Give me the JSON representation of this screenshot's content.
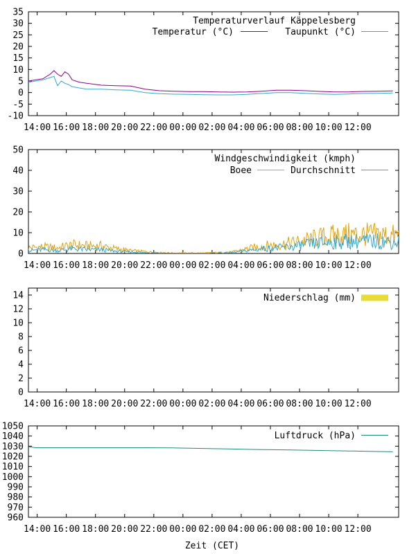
{
  "x_ticks": [
    "14:00",
    "16:00",
    "18:00",
    "20:00",
    "22:00",
    "00:00",
    "02:00",
    "04:00",
    "06:00",
    "08:00",
    "10:00",
    "12:00"
  ],
  "x_label": "Zeit (CET)",
  "colors": {
    "temperature": "#8b0086",
    "dewpoint": "#34a7cc",
    "gust": "#e6a00d",
    "average": "#34a7cc",
    "rain": "#e6dc35",
    "pressure": "#1e8a78"
  },
  "chart_data": [
    {
      "type": "line",
      "title": "Temperaturverlauf Käppelesberg",
      "ylim": [
        -10,
        35
      ],
      "yticks": [
        -10,
        -5,
        0,
        5,
        10,
        15,
        20,
        25,
        30,
        35
      ],
      "hours": [
        0,
        0.5,
        1,
        1.5,
        1.75,
        2,
        2.25,
        2.5,
        2.75,
        3,
        3.5,
        4,
        5,
        6,
        7,
        8,
        9,
        10,
        11,
        12,
        13,
        14,
        15,
        16,
        17,
        18,
        19,
        20,
        21,
        22,
        23,
        24,
        25
      ],
      "series": [
        {
          "name": "Temperatur (°C)",
          "values": [
            5,
            5.5,
            6,
            8,
            9.5,
            8,
            7,
            9,
            8,
            5.5,
            4.5,
            4,
            3.2,
            3,
            2.8,
            1.5,
            0.8,
            0.6,
            0.4,
            0.4,
            0.3,
            0.2,
            0.3,
            0.6,
            1,
            1,
            0.8,
            0.5,
            0.3,
            0.3,
            0.5,
            0.6,
            0.7
          ]
        },
        {
          "name": "Taupunkt (°C)",
          "values": [
            4.5,
            5,
            5.5,
            6.5,
            7,
            3,
            5,
            4,
            3.5,
            2.5,
            2,
            1.5,
            1.5,
            1.2,
            1,
            0,
            -0.5,
            -0.7,
            -0.8,
            -0.9,
            -1,
            -1,
            -0.8,
            -0.4,
            0,
            0,
            -0.3,
            -0.6,
            -0.8,
            -0.6,
            -0.4,
            -0.3,
            -0.2
          ]
        }
      ]
    },
    {
      "type": "line",
      "title": "Windgeschwindigkeit (kmph)",
      "ylim": [
        0,
        50
      ],
      "yticks": [
        0,
        10,
        20,
        30,
        40,
        50
      ],
      "hours": [
        0,
        1,
        2,
        3,
        4,
        5,
        6,
        7,
        8,
        9,
        10,
        11,
        12,
        13,
        14,
        15,
        16,
        17,
        18,
        19,
        20,
        21,
        22,
        23,
        24,
        25
      ],
      "series": [
        {
          "name": "Boee",
          "values": [
            3,
            3.5,
            3,
            4.5,
            4,
            4,
            2.5,
            1.5,
            1,
            0.5,
            0.3,
            0.3,
            0.3,
            0.5,
            0.8,
            2.5,
            4,
            4.5,
            5.5,
            7,
            8.5,
            9.5,
            10,
            10,
            10,
            9.5
          ]
        },
        {
          "name": "Durchschnitt",
          "values": [
            1.5,
            2,
            1.5,
            2.5,
            2,
            2,
            1.2,
            0.8,
            0.5,
            0.3,
            0.1,
            0.1,
            0.1,
            0.3,
            0.5,
            1.5,
            2.5,
            3,
            3.5,
            4.5,
            5.5,
            6,
            6.5,
            6.5,
            6.5,
            6
          ]
        }
      ]
    },
    {
      "type": "bar",
      "title": "Niederschlag (mm)",
      "ylim": [
        0,
        15
      ],
      "yticks": [
        0,
        2,
        4,
        6,
        8,
        10,
        12,
        14
      ],
      "series": [
        {
          "name": "Niederschlag (mm)",
          "values": []
        }
      ]
    },
    {
      "type": "line",
      "title": "Luftdruck (hPa)",
      "ylim": [
        960,
        1050
      ],
      "yticks": [
        960,
        970,
        980,
        990,
        1000,
        1010,
        1020,
        1030,
        1040,
        1050
      ],
      "hours": [
        0,
        0.5,
        4,
        8,
        10,
        12,
        14,
        16,
        18,
        20,
        22,
        24,
        25
      ],
      "series": [
        {
          "name": "Luftdruck (hPa)",
          "values": [
            1029.5,
            1028.5,
            1028.5,
            1028.5,
            1028.3,
            1027.8,
            1027.2,
            1026.7,
            1026.3,
            1025.8,
            1025.3,
            1024.8,
            1024.5
          ]
        }
      ]
    }
  ]
}
